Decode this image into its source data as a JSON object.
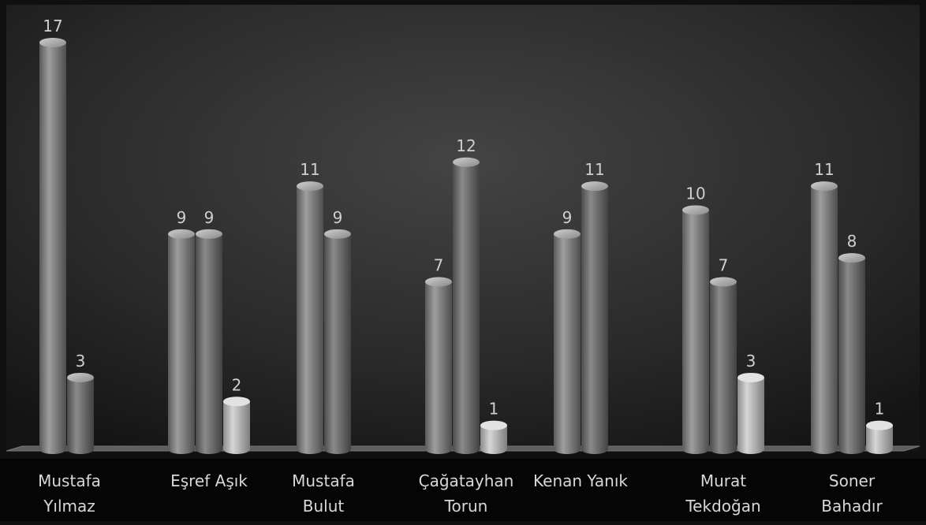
{
  "chart_data": {
    "type": "bar",
    "style": "3d-cylinder",
    "grayscale": true,
    "grid": false,
    "legend": "none",
    "title": "",
    "xlabel": "",
    "ylabel": "",
    "ylim": [
      0,
      17
    ],
    "categories": [
      [
        "Mustafa",
        "Yılmaz"
      ],
      [
        "Eşref Aşık"
      ],
      [
        "Mustafa",
        "Bulut"
      ],
      [
        "Çağatayhan",
        "Torun"
      ],
      [
        "Kenan Yanık"
      ],
      [
        "Murat",
        "Tekdoğan"
      ],
      [
        "Soner",
        "Bahadır"
      ]
    ],
    "series": [
      {
        "values": [
          17,
          9,
          11,
          7,
          9,
          10,
          11
        ]
      },
      {
        "values": [
          3,
          9,
          9,
          12,
          11,
          7,
          8
        ]
      },
      {
        "values": [
          null,
          2,
          null,
          1,
          null,
          3,
          1
        ]
      }
    ],
    "colors": [
      "#8e8e8e",
      "#7a7a7a",
      "#bdbdbd"
    ]
  }
}
